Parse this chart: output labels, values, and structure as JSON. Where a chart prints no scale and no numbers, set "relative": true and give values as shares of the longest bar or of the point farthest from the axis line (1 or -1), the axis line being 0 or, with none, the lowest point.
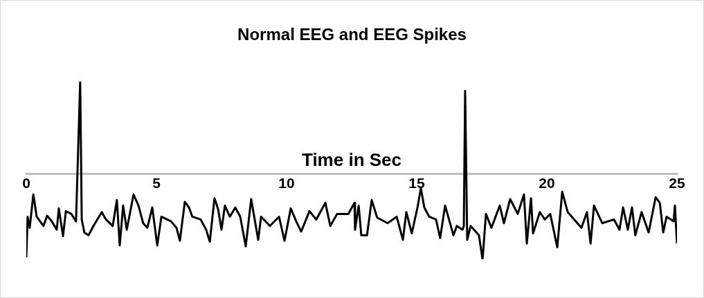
{
  "chart_data": {
    "type": "line",
    "title": "Normal EEG and EEG Spikes",
    "xlabel": "Time in Sec",
    "relative": true,
    "xlim": [
      0,
      25
    ],
    "xticks": [
      0,
      5,
      10,
      15,
      20,
      25
    ],
    "grid": false,
    "legend": false,
    "marker": "none",
    "line_style": "solid",
    "series": [
      {
        "color": "#000000",
        "x": [
          0,
          0.05,
          0.13,
          0.27,
          0.4,
          0.66,
          0.8,
          0.98,
          1.17,
          1.25,
          1.41,
          1.52,
          1.73,
          1.91,
          2.07,
          2.13,
          2.23,
          2.39,
          2.58,
          2.9,
          3.06,
          3.32,
          3.48,
          3.59,
          3.72,
          3.86,
          4.12,
          4.31,
          4.49,
          4.65,
          4.84,
          5.03,
          5.19,
          5.56,
          5.77,
          5.9,
          6.09,
          6.25,
          6.38,
          6.7,
          6.91,
          7.05,
          7.23,
          7.37,
          7.5,
          7.63,
          7.82,
          8.03,
          8.22,
          8.43,
          8.64,
          8.91,
          9.02,
          9.36,
          9.71,
          9.92,
          10.16,
          10.37,
          10.56,
          10.88,
          11.14,
          11.49,
          11.68,
          11.94,
          12.37,
          12.61,
          12.63,
          12.77,
          12.87,
          13.09,
          13.27,
          13.48,
          13.88,
          14.23,
          14.47,
          14.6,
          14.81,
          15.03,
          15.16,
          15.29,
          15.48,
          15.74,
          15.9,
          16.09,
          16.41,
          16.54,
          16.76,
          16.81,
          16.86,
          16.94,
          17.07,
          17.39,
          17.53,
          17.66,
          17.87,
          18.19,
          18.35,
          18.59,
          18.88,
          19.12,
          19.23,
          19.39,
          19.47,
          19.73,
          19.92,
          20.13,
          20.4,
          20.59,
          20.8,
          21.33,
          21.54,
          21.68,
          21.81,
          22.13,
          22.58,
          22.79,
          22.93,
          23.11,
          23.27,
          23.4,
          23.64,
          23.91,
          24.18,
          24.34,
          24.47,
          24.6,
          24.87,
          24.92,
          25
        ],
        "values": [
          -0.9,
          -0.46,
          -0.58,
          -0.22,
          -0.46,
          -0.56,
          -0.45,
          -0.51,
          -0.6,
          -0.37,
          -0.67,
          -0.4,
          -0.43,
          -0.51,
          1,
          -0.49,
          -0.63,
          -0.66,
          -0.56,
          -0.41,
          -0.49,
          -0.56,
          -0.28,
          -0.77,
          -0.34,
          -0.6,
          -0.22,
          -0.34,
          -0.53,
          -0.58,
          -0.36,
          -0.77,
          -0.46,
          -0.51,
          -0.58,
          -0.72,
          -0.3,
          -0.36,
          -0.46,
          -0.49,
          -0.6,
          -0.73,
          -0.26,
          -0.38,
          -0.6,
          -0.34,
          -0.46,
          -0.36,
          -0.46,
          -0.78,
          -0.27,
          -0.71,
          -0.46,
          -0.56,
          -0.46,
          -0.72,
          -0.37,
          -0.51,
          -0.62,
          -0.4,
          -0.49,
          -0.31,
          -0.56,
          -0.43,
          -0.43,
          -0.31,
          -0.6,
          -0.34,
          -0.66,
          -0.66,
          -0.28,
          -0.47,
          -0.53,
          -0.46,
          -0.71,
          -0.41,
          -0.64,
          -0.36,
          -0.15,
          -0.36,
          -0.46,
          -0.49,
          -0.69,
          -0.34,
          -0.66,
          -0.56,
          -0.6,
          -0.56,
          0.9,
          -0.71,
          -0.56,
          -0.66,
          -0.92,
          -0.43,
          -0.58,
          -0.34,
          -0.53,
          -0.27,
          -0.43,
          -0.22,
          -0.75,
          -0.26,
          -0.64,
          -0.41,
          -0.49,
          -0.43,
          -0.79,
          -0.19,
          -0.41,
          -0.58,
          -0.41,
          -0.75,
          -0.34,
          -0.53,
          -0.49,
          -0.6,
          -0.36,
          -0.6,
          -0.36,
          -0.66,
          -0.41,
          -0.63,
          -0.25,
          -0.31,
          -0.63,
          -0.46,
          -0.51,
          -0.34,
          -0.75
        ]
      }
    ]
  }
}
